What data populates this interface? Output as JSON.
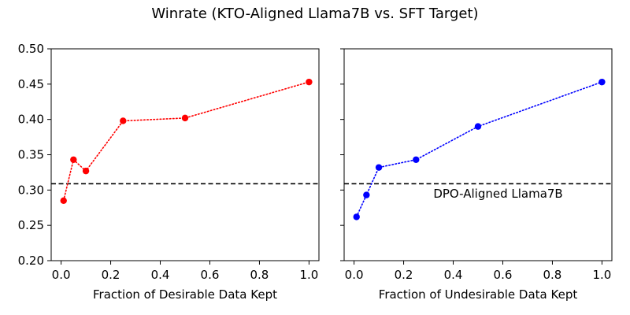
{
  "figure": {
    "title": "Winrate (KTO-Aligned Llama7B vs. SFT Target)"
  },
  "chart_data": [
    {
      "type": "line",
      "xlabel": "Fraction of Desirable Data Kept",
      "ylabel": "",
      "xlim": [
        -0.04,
        1.04
      ],
      "ylim": [
        0.2,
        0.5
      ],
      "xticks": [
        0.0,
        0.2,
        0.4,
        0.6,
        0.8,
        1.0
      ],
      "xtick_labels": [
        "0.0",
        "0.2",
        "0.4",
        "0.6",
        "0.8",
        "1.0"
      ],
      "yticks": [
        0.2,
        0.25,
        0.3,
        0.35,
        0.4,
        0.45,
        0.5
      ],
      "ytick_labels": [
        "0.20",
        "0.25",
        "0.30",
        "0.35",
        "0.40",
        "0.45",
        "0.50"
      ],
      "show_ytick_labels": true,
      "grid": false,
      "series": [
        {
          "color": "#ff0000",
          "line_style": "dotted",
          "marker": "circle",
          "x": [
            0.01,
            0.05,
            0.1,
            0.25,
            0.5,
            1.0
          ],
          "y": [
            0.285,
            0.343,
            0.327,
            0.398,
            0.402,
            0.453
          ]
        }
      ],
      "reference_line": {
        "y": 0.309,
        "style": "dashed",
        "color": "#000000"
      }
    },
    {
      "type": "line",
      "xlabel": "Fraction of Undesirable Data Kept",
      "ylabel": "",
      "xlim": [
        -0.04,
        1.04
      ],
      "ylim": [
        0.2,
        0.5
      ],
      "xticks": [
        0.0,
        0.2,
        0.4,
        0.6,
        0.8,
        1.0
      ],
      "xtick_labels": [
        "0.0",
        "0.2",
        "0.4",
        "0.6",
        "0.8",
        "1.0"
      ],
      "yticks": [
        0.2,
        0.25,
        0.3,
        0.35,
        0.4,
        0.45,
        0.5
      ],
      "ytick_labels": [
        "0.20",
        "0.25",
        "0.30",
        "0.35",
        "0.40",
        "0.45",
        "0.50"
      ],
      "show_ytick_labels": false,
      "grid": false,
      "series": [
        {
          "color": "#0000ff",
          "line_style": "dotted",
          "marker": "circle",
          "x": [
            0.01,
            0.05,
            0.1,
            0.25,
            0.5,
            1.0
          ],
          "y": [
            0.262,
            0.293,
            0.332,
            0.343,
            0.39,
            0.453
          ]
        }
      ],
      "reference_line": {
        "y": 0.309,
        "style": "dashed",
        "color": "#000000"
      },
      "annotations": [
        {
          "text": "DPO-Aligned Llama7B",
          "x": 0.32,
          "y": 0.289
        }
      ]
    }
  ]
}
